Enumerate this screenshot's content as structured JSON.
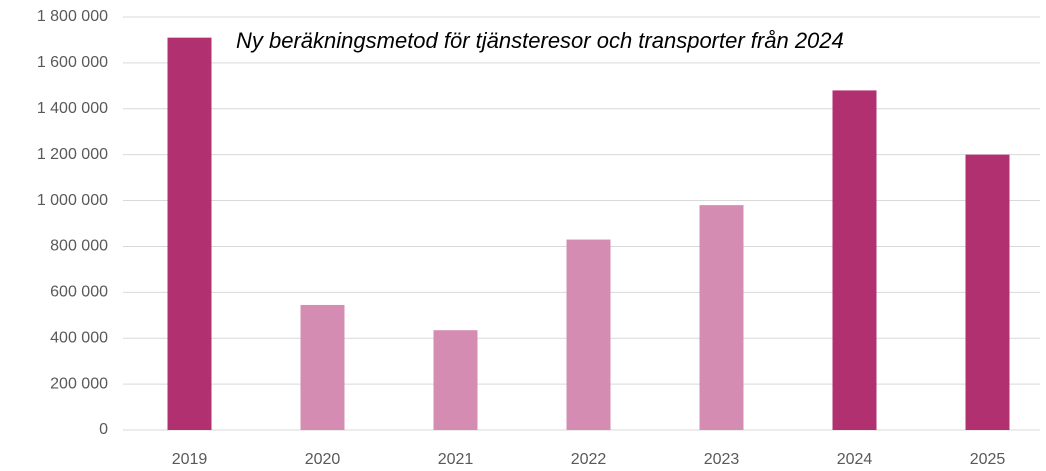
{
  "chart_data": {
    "type": "bar",
    "annotation": "Ny beräkningsmetod för tjänsteresor och transporter från 2024",
    "categories": [
      "2019",
      "2020",
      "2021",
      "2022",
      "2023",
      "2024",
      "2025"
    ],
    "values": [
      1710000,
      545000,
      435000,
      830000,
      980000,
      1480000,
      1200000
    ],
    "colors": [
      "#b03070",
      "#d48cb2",
      "#d48cb2",
      "#d48cb2",
      "#d48cb2",
      "#b03070",
      "#b03070"
    ],
    "ylim": [
      0,
      1800000
    ],
    "yticks": [
      0,
      {
        "value": 200000,
        "label": "200 000"
      },
      {
        "value": 400000,
        "label": "400 000"
      },
      {
        "value": 600000,
        "label": "600 000"
      },
      {
        "value": 800000,
        "label": "800 000"
      },
      {
        "value": 1000000,
        "label": "1 000 000"
      },
      {
        "value": 1200000,
        "label": "1 200 000"
      },
      {
        "value": 1400000,
        "label": "1 400 000"
      },
      {
        "value": 1600000,
        "label": "1 600 000"
      },
      {
        "value": 1800000,
        "label": "1 800 000"
      }
    ],
    "grid": true
  }
}
